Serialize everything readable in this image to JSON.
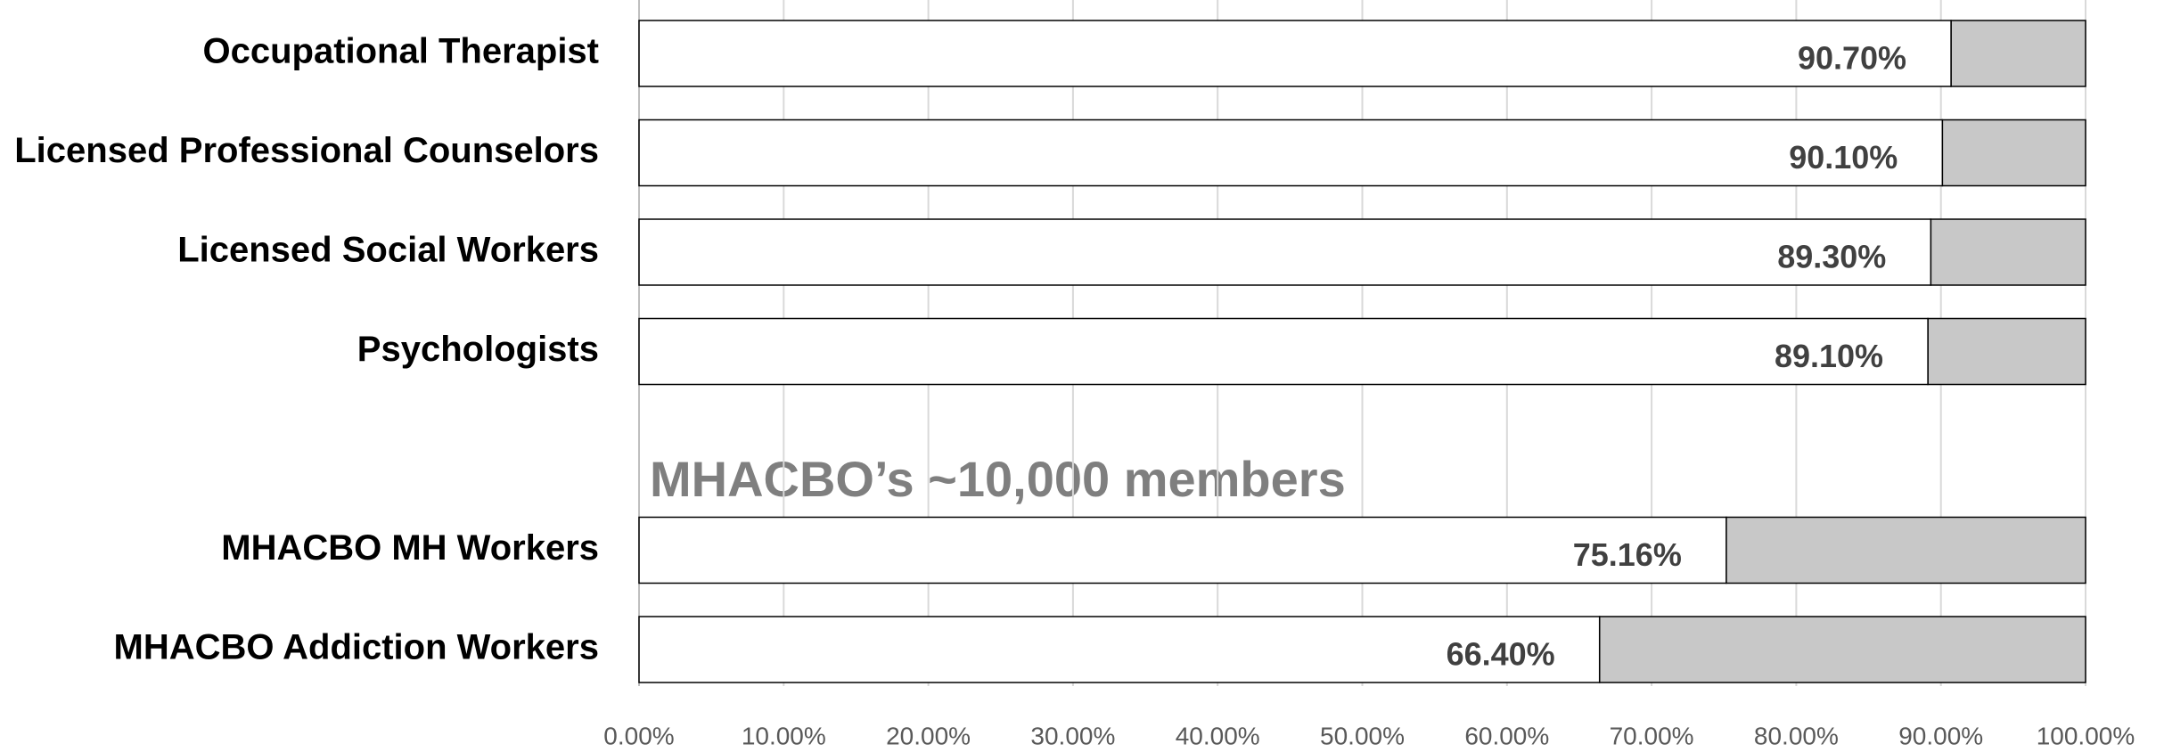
{
  "chart_data": {
    "type": "bar",
    "orientation": "horizontal",
    "annotation": "MHACBO’s ~10,000 members",
    "categories": [
      "Occupational Therapist",
      "Licensed Professional Counselors",
      "Licensed Social Workers",
      "Psychologists",
      null,
      "MHACBO MH Workers",
      "MHACBO Addiction Workers"
    ],
    "values": [
      90.7,
      90.1,
      89.3,
      89.1,
      null,
      75.16,
      66.4
    ],
    "value_labels": [
      "90.70%",
      "90.10%",
      "89.30%",
      "89.10%",
      null,
      "75.16%",
      "66.40%"
    ],
    "color": "#ffffff",
    "remainder_color": "#c8c8c8",
    "xlim": [
      0,
      100
    ],
    "xticks": [
      {
        "value": 0,
        "label": "0.00%"
      },
      {
        "value": 10,
        "label": "10.00%"
      },
      {
        "value": 20,
        "label": "20.00%"
      },
      {
        "value": 30,
        "label": "30.00%"
      },
      {
        "value": 40,
        "label": "40.00%"
      },
      {
        "value": 50,
        "label": "50.00%"
      },
      {
        "value": 60,
        "label": "60.00%"
      },
      {
        "value": 70,
        "label": "70.00%"
      },
      {
        "value": 80,
        "label": "80.00%"
      },
      {
        "value": 90,
        "label": "90.00%"
      },
      {
        "value": 100,
        "label": "100.00%"
      }
    ],
    "grid": true
  }
}
